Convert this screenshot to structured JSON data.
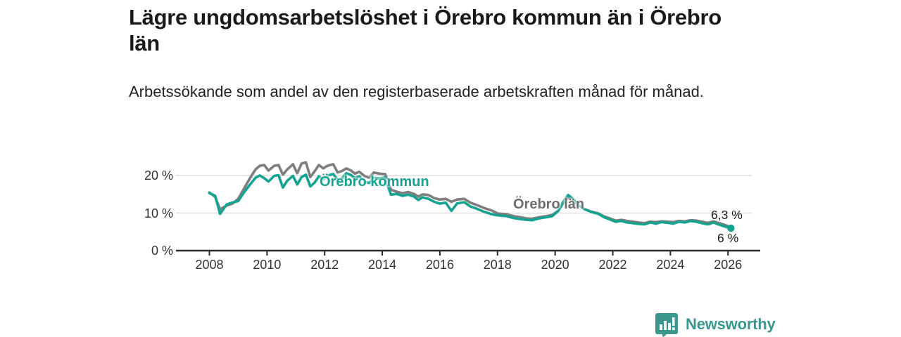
{
  "header": {
    "title": "Lägre ungdomsarbetslöshet i Örebro kommun än i Örebro län",
    "subtitle": "Arbetssökande som andel av den registerbaserade arbetskraften månad för månad."
  },
  "colors": {
    "kommun_teal": "#14a291",
    "lan_gray": "#7e7e7e",
    "grid": "#d8d8d8",
    "axis": "#2b2b2b",
    "tick_text": "#333333",
    "title_text": "#1a1a1a",
    "brand_teal": "#3b968e"
  },
  "chart_data": {
    "type": "line",
    "title": "Lägre ungdomsarbetslöshet i Örebro kommun än i Örebro län",
    "subtitle": "Arbetssökande som andel av den registerbaserade arbetskraften månad för månad.",
    "xlabel": "",
    "ylabel": "",
    "unit": "%",
    "grid": "horizontal",
    "legend_position": "inline-labels",
    "ylim": [
      0,
      25
    ],
    "xlim": [
      2006.9,
      2027.1
    ],
    "y_ticks": [
      0,
      10,
      20
    ],
    "y_tick_labels": [
      "0 %",
      "10 %",
      "20 %"
    ],
    "x_ticks": [
      2008,
      2010,
      2012,
      2014,
      2016,
      2018,
      2020,
      2022,
      2024,
      2026
    ],
    "x_tick_labels": [
      "2008",
      "2010",
      "2012",
      "2014",
      "2016",
      "2018",
      "2020",
      "2022",
      "2024",
      "2026"
    ],
    "x": [
      2008.0,
      2008.2,
      2008.37,
      2008.6,
      2008.8,
      2009.0,
      2009.2,
      2009.4,
      2009.6,
      2009.75,
      2009.9,
      2010.05,
      2010.25,
      2010.4,
      2010.55,
      2010.7,
      2010.9,
      2011.05,
      2011.2,
      2011.35,
      2011.5,
      2011.65,
      2011.8,
      2011.95,
      2012.1,
      2012.3,
      2012.45,
      2012.6,
      2012.75,
      2012.9,
      2013.05,
      2013.2,
      2013.4,
      2013.55,
      2013.7,
      2013.9,
      2014.1,
      2014.3,
      2014.5,
      2014.7,
      2014.9,
      2015.1,
      2015.25,
      2015.4,
      2015.6,
      2015.8,
      2016.0,
      2016.2,
      2016.4,
      2016.6,
      2016.85,
      2017.05,
      2017.3,
      2017.55,
      2017.8,
      2018.0,
      2018.3,
      2018.55,
      2018.8,
      2019.0,
      2019.2,
      2019.45,
      2019.7,
      2019.9,
      2020.1,
      2020.3,
      2020.45,
      2020.6,
      2020.8,
      2021.0,
      2021.25,
      2021.5,
      2021.7,
      2021.9,
      2022.1,
      2022.3,
      2022.5,
      2022.7,
      2022.9,
      2023.1,
      2023.3,
      2023.5,
      2023.7,
      2023.9,
      2024.1,
      2024.3,
      2024.5,
      2024.7,
      2024.9,
      2025.1,
      2025.3,
      2025.5,
      2025.7,
      2025.9,
      2026.1
    ],
    "series": [
      {
        "name": "Örebro län",
        "label_text": "Örebro län",
        "color": "#7e7e7e",
        "end_value_label": "6,3 %",
        "end_value": 6.3,
        "end_dot": false,
        "values": [
          15.5,
          14.3,
          11.0,
          12.0,
          12.5,
          13.8,
          16.5,
          19.2,
          21.6,
          22.6,
          22.8,
          21.3,
          22.6,
          22.8,
          20.2,
          21.6,
          23.0,
          20.6,
          23.2,
          23.5,
          19.6,
          21.1,
          22.8,
          21.9,
          22.6,
          23.0,
          20.8,
          21.2,
          21.9,
          21.4,
          20.5,
          21.0,
          19.8,
          19.4,
          20.8,
          20.5,
          20.4,
          16.2,
          15.7,
          15.3,
          15.6,
          15.1,
          14.4,
          15.0,
          14.8,
          14.0,
          13.6,
          13.8,
          13.0,
          13.6,
          13.8,
          12.8,
          12.1,
          11.3,
          10.7,
          9.9,
          9.7,
          9.2,
          8.9,
          8.6,
          8.5,
          8.9,
          9.2,
          9.5,
          10.6,
          12.8,
          14.1,
          13.6,
          12.2,
          11.1,
          10.4,
          9.9,
          9.1,
          8.6,
          8.0,
          8.2,
          7.9,
          7.7,
          7.5,
          7.3,
          7.7,
          7.6,
          7.8,
          7.7,
          7.6,
          7.9,
          7.8,
          8.1,
          8.0,
          7.7,
          7.4,
          7.8,
          7.3,
          6.8,
          6.3
        ]
      },
      {
        "name": "Örebro kommun",
        "label_text": "Örebro kommun",
        "color": "#14a291",
        "end_value_label": "6 %",
        "end_value": 6.0,
        "end_dot": true,
        "values": [
          15.3,
          14.6,
          9.8,
          12.3,
          12.8,
          13.2,
          15.5,
          17.5,
          19.4,
          20.0,
          19.3,
          18.4,
          19.9,
          20.1,
          16.8,
          18.6,
          19.9,
          17.6,
          19.6,
          20.2,
          17.1,
          18.1,
          19.8,
          19.0,
          20.0,
          20.4,
          18.8,
          19.2,
          20.6,
          20.2,
          19.3,
          19.8,
          18.3,
          18.0,
          19.4,
          19.2,
          19.5,
          14.9,
          15.1,
          14.6,
          14.9,
          14.4,
          13.5,
          14.2,
          13.8,
          13.0,
          12.5,
          12.8,
          10.6,
          12.6,
          12.9,
          11.8,
          11.1,
          10.3,
          9.7,
          9.4,
          9.2,
          8.7,
          8.4,
          8.2,
          8.1,
          8.6,
          8.9,
          9.2,
          10.5,
          13.2,
          14.8,
          13.9,
          12.2,
          11.1,
          10.3,
          9.8,
          8.9,
          8.3,
          7.7,
          7.9,
          7.5,
          7.3,
          7.1,
          7.0,
          7.5,
          7.2,
          7.6,
          7.4,
          7.2,
          7.7,
          7.5,
          7.9,
          7.7,
          7.3,
          7.0,
          7.5,
          6.9,
          6.4,
          6.0
        ]
      }
    ]
  },
  "footer": {
    "brand": "Newsworthy",
    "logo_icon": "bar-chart-speech-bubble-icon"
  }
}
